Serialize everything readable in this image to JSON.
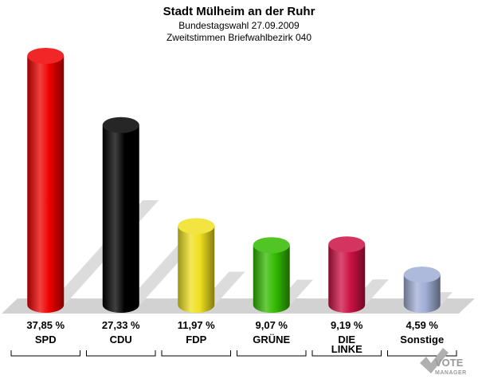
{
  "header": {
    "title": "Stadt Mülheim an der Ruhr",
    "subtitle1": "Bundestagswahl 27.09.2009",
    "subtitle2": "Zweitstimmen Briefwahlbezirk 040"
  },
  "logo": {
    "line1": "VOTE",
    "line2": "MANAGER"
  },
  "chart_data": {
    "type": "bar",
    "title": "Stadt Mülheim an der Ruhr",
    "categories": [
      "SPD",
      "CDU",
      "FDP",
      "GRÜNE",
      "DIE LINKE",
      "Sonstige"
    ],
    "category_lines": [
      [
        "SPD"
      ],
      [
        "CDU"
      ],
      [
        "FDP"
      ],
      [
        "GRÜNE"
      ],
      [
        "DIE",
        "LINKE"
      ],
      [
        "Sonstige"
      ]
    ],
    "values": [
      37.85,
      27.33,
      11.97,
      9.07,
      9.19,
      4.59
    ],
    "value_labels": [
      "37,85 %",
      "27,33 %",
      "11,97 %",
      "9,07 %",
      "9,19 %",
      "4,59 %"
    ],
    "colors": [
      "#ee0000",
      "#000000",
      "#f0e020",
      "#33bb00",
      "#cc1144",
      "#a0aed6"
    ],
    "unit": "%",
    "grid": false,
    "legend": "none"
  }
}
